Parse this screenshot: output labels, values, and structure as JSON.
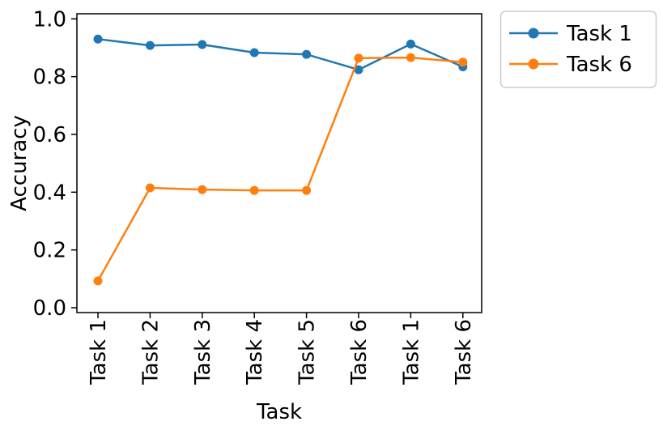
{
  "chart_data": {
    "type": "line",
    "title": "",
    "xlabel": "Task",
    "ylabel": "Accuracy",
    "categories": [
      "Task 1",
      "Task 2",
      "Task 3",
      "Task 4",
      "Task 5",
      "Task 6",
      "Task 1",
      "Task 6"
    ],
    "series": [
      {
        "name": "Task 1",
        "color": "#1f77b4",
        "values": [
          0.93,
          0.908,
          0.911,
          0.883,
          0.877,
          0.824,
          0.913,
          0.834
        ]
      },
      {
        "name": "Task 6",
        "color": "#ff7f0e",
        "values": [
          0.093,
          0.415,
          0.409,
          0.406,
          0.406,
          0.864,
          0.866,
          0.85
        ]
      }
    ],
    "ylim": [
      0.0,
      1.0
    ],
    "yticks": [
      {
        "value": 0.0,
        "label": "0.0"
      },
      {
        "value": 0.2,
        "label": "0.2"
      },
      {
        "value": 0.4,
        "label": "0.4"
      },
      {
        "value": 0.6,
        "label": "0.6"
      },
      {
        "value": 0.8,
        "label": "0.8"
      },
      {
        "value": 1.0,
        "label": "1.0"
      }
    ],
    "grid": false,
    "marker": "circle",
    "legend": {
      "position": "outside-top-right",
      "entries": [
        "Task 1",
        "Task 6"
      ]
    },
    "axis_color": "#000000",
    "background": "#ffffff"
  }
}
